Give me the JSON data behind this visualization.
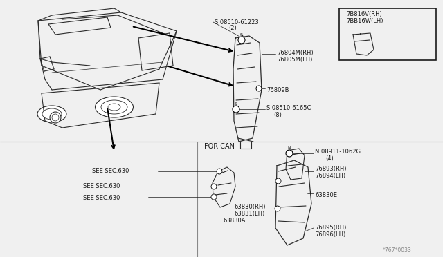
{
  "bg_color": "#f0f0f0",
  "line_color": "#1a1a1a",
  "car_color": "#2a2a2a",
  "labels": {
    "screw1": "S 08510-61223",
    "screw1b": "(2)",
    "part1a": "76804M(RH)",
    "part1b": "76805M(LH)",
    "part2": "76809B",
    "screw2": "S 08510-6165C",
    "screw2b": "(8)",
    "inset_label1": "7B816V(RH)",
    "inset_label2": "7BB16W(LH)",
    "for_can": "FOR CAN",
    "nut1": "N 08911-1062G",
    "nut1b": "(4)",
    "part3a": "76893(RH)",
    "part3b": "76894(LH)",
    "part4": "63830E",
    "part5a": "76895(RH)",
    "part5b": "76896(LH)",
    "part6": "63830A",
    "see1": "SEE SEC.630",
    "see2": "SEE SEC.630",
    "see3": "SEE SEC.630",
    "part7a": "63830(RH)",
    "part7b": "63831(LH)",
    "watermark": "*767*0033"
  }
}
